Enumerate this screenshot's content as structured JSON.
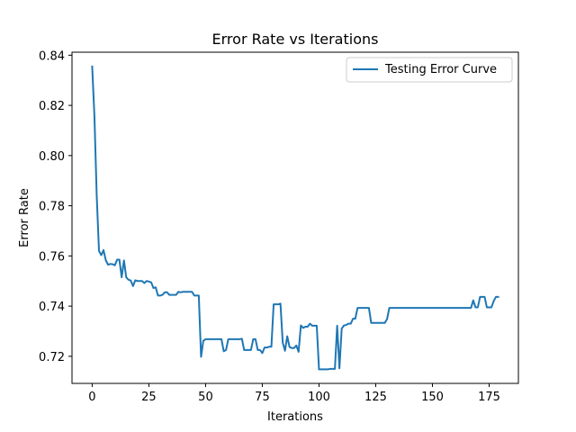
{
  "chart_data": {
    "type": "line",
    "title": "Error Rate vs Iterations",
    "xlabel": "Iterations",
    "ylabel": "Error Rate",
    "xlim": [
      -8.9,
      187.9
    ],
    "ylim": [
      0.7092,
      0.8412
    ],
    "xticks": [
      0,
      25,
      50,
      75,
      100,
      125,
      150,
      175
    ],
    "yticks": [
      0.72,
      0.74,
      0.76,
      0.78,
      0.8,
      0.82,
      0.84
    ],
    "ytick_labels": [
      "0.72",
      "0.74",
      "0.76",
      "0.78",
      "0.80",
      "0.82",
      "0.84"
    ],
    "grid": false,
    "legend_position": "upper right",
    "series": [
      {
        "name": "Testing Error Curve",
        "color": "#1f77b4",
        "points": [
          [
            0,
            0.8355
          ],
          [
            1,
            0.8155
          ],
          [
            2,
            0.784
          ],
          [
            3,
            0.762
          ],
          [
            4,
            0.7603
          ],
          [
            5,
            0.7623
          ],
          [
            6,
            0.7583
          ],
          [
            7,
            0.7565
          ],
          [
            8,
            0.7568
          ],
          [
            9,
            0.7567
          ],
          [
            10,
            0.7563
          ],
          [
            11,
            0.7585
          ],
          [
            12,
            0.7585
          ],
          [
            13,
            0.7515
          ],
          [
            14,
            0.7582
          ],
          [
            15,
            0.7515
          ],
          [
            16,
            0.7505
          ],
          [
            17,
            0.7502
          ],
          [
            18,
            0.748
          ],
          [
            19,
            0.7503
          ],
          [
            20,
            0.75
          ],
          [
            21,
            0.75
          ],
          [
            22,
            0.75
          ],
          [
            23,
            0.7492
          ],
          [
            24,
            0.75
          ],
          [
            25,
            0.7498
          ],
          [
            26,
            0.7495
          ],
          [
            27,
            0.7472
          ],
          [
            28,
            0.7475
          ],
          [
            29,
            0.7442
          ],
          [
            30,
            0.7442
          ],
          [
            31,
            0.7445
          ],
          [
            32,
            0.7455
          ],
          [
            33,
            0.7455
          ],
          [
            34,
            0.7445
          ],
          [
            35,
            0.7445
          ],
          [
            36,
            0.7445
          ],
          [
            37,
            0.7445
          ],
          [
            38,
            0.7457
          ],
          [
            39,
            0.7455
          ],
          [
            40,
            0.7457
          ],
          [
            41,
            0.7457
          ],
          [
            42,
            0.7457
          ],
          [
            43,
            0.7457
          ],
          [
            44,
            0.7457
          ],
          [
            45,
            0.7442
          ],
          [
            46,
            0.7442
          ],
          [
            47,
            0.7442
          ],
          [
            48,
            0.7198
          ],
          [
            49,
            0.7262
          ],
          [
            50,
            0.7268
          ],
          [
            51,
            0.7268
          ],
          [
            52,
            0.7268
          ],
          [
            53,
            0.7268
          ],
          [
            54,
            0.7268
          ],
          [
            55,
            0.7268
          ],
          [
            56,
            0.7268
          ],
          [
            57,
            0.7268
          ],
          [
            58,
            0.722
          ],
          [
            59,
            0.7225
          ],
          [
            60,
            0.7268
          ],
          [
            61,
            0.7268
          ],
          [
            62,
            0.7268
          ],
          [
            63,
            0.7268
          ],
          [
            64,
            0.7268
          ],
          [
            65,
            0.7268
          ],
          [
            66,
            0.727
          ],
          [
            67,
            0.7225
          ],
          [
            68,
            0.7225
          ],
          [
            69,
            0.7225
          ],
          [
            70,
            0.7225
          ],
          [
            71,
            0.7268
          ],
          [
            72,
            0.7268
          ],
          [
            73,
            0.7225
          ],
          [
            74,
            0.7225
          ],
          [
            75,
            0.7213
          ],
          [
            76,
            0.7235
          ],
          [
            77,
            0.7235
          ],
          [
            78,
            0.7238
          ],
          [
            79,
            0.7238
          ],
          [
            80,
            0.7407
          ],
          [
            81,
            0.7407
          ],
          [
            82,
            0.7407
          ],
          [
            83,
            0.741
          ],
          [
            84,
            0.7255
          ],
          [
            85,
            0.7222
          ],
          [
            86,
            0.728
          ],
          [
            87,
            0.7237
          ],
          [
            88,
            0.7233
          ],
          [
            89,
            0.7233
          ],
          [
            90,
            0.7243
          ],
          [
            91,
            0.7218
          ],
          [
            92,
            0.7323
          ],
          [
            93,
            0.7313
          ],
          [
            94,
            0.7318
          ],
          [
            95,
            0.7318
          ],
          [
            96,
            0.733
          ],
          [
            97,
            0.7322
          ],
          [
            98,
            0.7322
          ],
          [
            99,
            0.7322
          ],
          [
            100,
            0.7148
          ],
          [
            101,
            0.7148
          ],
          [
            102,
            0.7148
          ],
          [
            103,
            0.7148
          ],
          [
            104,
            0.7148
          ],
          [
            105,
            0.715
          ],
          [
            106,
            0.715
          ],
          [
            107,
            0.715
          ],
          [
            108,
            0.7322
          ],
          [
            109,
            0.7152
          ],
          [
            110,
            0.731
          ],
          [
            111,
            0.7323
          ],
          [
            112,
            0.7325
          ],
          [
            113,
            0.733
          ],
          [
            114,
            0.733
          ],
          [
            115,
            0.735
          ],
          [
            116,
            0.735
          ],
          [
            117,
            0.7393
          ],
          [
            118,
            0.7393
          ],
          [
            119,
            0.7393
          ],
          [
            120,
            0.7393
          ],
          [
            121,
            0.7393
          ],
          [
            122,
            0.7393
          ],
          [
            123,
            0.7333
          ],
          [
            124,
            0.7333
          ],
          [
            125,
            0.7333
          ],
          [
            126,
            0.7333
          ],
          [
            127,
            0.7333
          ],
          [
            128,
            0.7333
          ],
          [
            129,
            0.7333
          ],
          [
            130,
            0.7348
          ],
          [
            131,
            0.7393
          ],
          [
            135,
            0.7393
          ],
          [
            140,
            0.7393
          ],
          [
            145,
            0.7393
          ],
          [
            150,
            0.7393
          ],
          [
            155,
            0.7393
          ],
          [
            160,
            0.7393
          ],
          [
            165,
            0.7393
          ],
          [
            166,
            0.7393
          ],
          [
            167,
            0.7393
          ],
          [
            168,
            0.7423
          ],
          [
            169,
            0.7395
          ],
          [
            170,
            0.7395
          ],
          [
            171,
            0.7437
          ],
          [
            172,
            0.7437
          ],
          [
            173,
            0.7437
          ],
          [
            174,
            0.7395
          ],
          [
            175,
            0.7395
          ],
          [
            176,
            0.7395
          ],
          [
            177,
            0.742
          ],
          [
            178,
            0.7437
          ],
          [
            179,
            0.7437
          ]
        ]
      }
    ]
  }
}
